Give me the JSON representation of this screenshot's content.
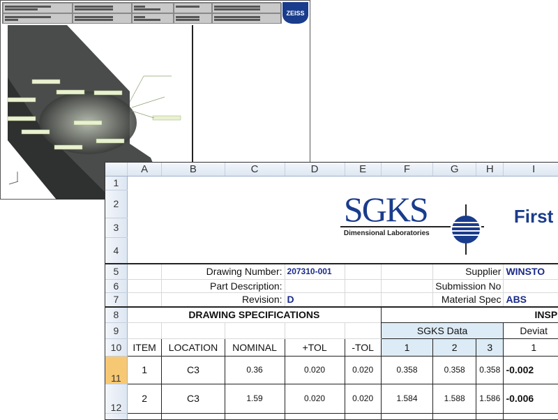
{
  "cad_window": {
    "logo": "ZEISS"
  },
  "sheet": {
    "columns": [
      "A",
      "B",
      "C",
      "D",
      "E",
      "F",
      "G",
      "H",
      "I"
    ],
    "rows": [
      "1",
      "2",
      "3",
      "4",
      "5",
      "6",
      "7",
      "8",
      "9",
      "10",
      "11",
      "12"
    ],
    "logo": {
      "name": "SGKS",
      "tagline": "Dimensional Laboratories"
    },
    "title": "First",
    "fields": {
      "drawing_number_label": "Drawing Number:",
      "drawing_number": "207310-001",
      "part_description_label": "Part Description:",
      "revision_label": "Revision:",
      "revision": "D",
      "supplier_label": "Supplier",
      "supplier": "WINSTO",
      "submission_label": "Submission No",
      "material_label": "Material Spec",
      "material": "ABS"
    },
    "section_left": "DRAWING SPECIFICATIONS",
    "section_right": "INSPE",
    "sgks_data": "SGKS Data",
    "deviation": "Deviat",
    "headers": [
      "ITEM",
      "LOCATION",
      "NOMINAL",
      "+TOL",
      "-TOL",
      "1",
      "2",
      "3",
      "1"
    ],
    "data_rows": [
      [
        "1",
        "C3",
        "0.36",
        "0.020",
        "0.020",
        "0.358",
        "0.358",
        "0.358",
        "-0.002"
      ],
      [
        "2",
        "C3",
        "1.59",
        "0.020",
        "0.020",
        "1.584",
        "1.588",
        "1.586",
        "-0.006"
      ]
    ],
    "colors": {
      "logo_blue": "#1a3c8c",
      "header_blue": "#dcebf5",
      "selected_row": "#f7c873"
    }
  }
}
